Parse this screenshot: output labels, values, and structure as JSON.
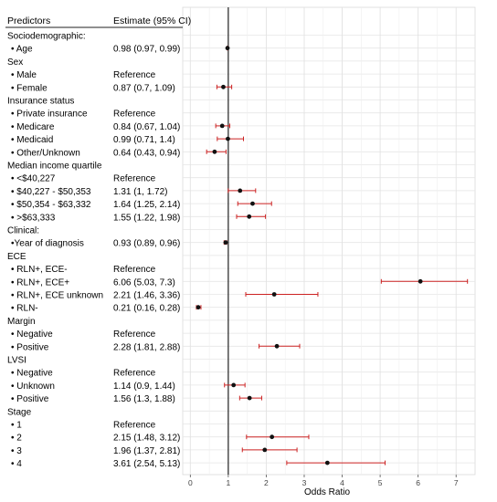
{
  "chart_data": {
    "type": "forest",
    "header": {
      "predictors": "Predictors",
      "estimate": "Estimate (95% CI)"
    },
    "xlabel": "Odds Ratio",
    "xlim": [
      -0.2,
      7.5
    ],
    "xticks": [
      0,
      1,
      2,
      3,
      4,
      5,
      6,
      7
    ],
    "reference_line": 1,
    "grid": true,
    "rows": [
      {
        "label": "Sociodemographic:",
        "kind": "section"
      },
      {
        "label": "• Age",
        "estimate_text": "0.98 (0.97, 0.99)",
        "or": 0.98,
        "lo": 0.97,
        "hi": 0.99
      },
      {
        "label": "Sex",
        "kind": "section"
      },
      {
        "label": "• Male",
        "estimate_text": "Reference"
      },
      {
        "label": "• Female",
        "estimate_text": "0.87 (0.7, 1.09)",
        "or": 0.87,
        "lo": 0.7,
        "hi": 1.09
      },
      {
        "label": "Insurance status",
        "kind": "section"
      },
      {
        "label": "• Private insurance",
        "estimate_text": "Reference"
      },
      {
        "label": "• Medicare",
        "estimate_text": "0.84 (0.67, 1.04)",
        "or": 0.84,
        "lo": 0.67,
        "hi": 1.04
      },
      {
        "label": "• Medicaid",
        "estimate_text": "0.99 (0.71, 1.4)",
        "or": 0.99,
        "lo": 0.71,
        "hi": 1.4
      },
      {
        "label": "• Other/Unknown",
        "estimate_text": "0.64 (0.43, 0.94)",
        "or": 0.64,
        "lo": 0.43,
        "hi": 0.94
      },
      {
        "label": "Median income quartile",
        "kind": "section"
      },
      {
        "label": "• <$40,227",
        "estimate_text": "Reference"
      },
      {
        "label": "• $40,227 - $50,353",
        "estimate_text": "1.31 (1, 1.72)",
        "or": 1.31,
        "lo": 1.0,
        "hi": 1.72
      },
      {
        "label": "• $50,354 - $63,332",
        "estimate_text": "1.64 (1.25, 2.14)",
        "or": 1.64,
        "lo": 1.25,
        "hi": 2.14
      },
      {
        "label": "• >$63,333",
        "estimate_text": "1.55 (1.22, 1.98)",
        "or": 1.55,
        "lo": 1.22,
        "hi": 1.98
      },
      {
        "label": "Clinical:",
        "kind": "section"
      },
      {
        "label": "•Year of diagnosis",
        "estimate_text": "0.93 (0.89, 0.96)",
        "or": 0.93,
        "lo": 0.89,
        "hi": 0.96
      },
      {
        "label": "ECE",
        "kind": "section"
      },
      {
        "label": "• RLN+, ECE-",
        "estimate_text": "Reference"
      },
      {
        "label": "• RLN+, ECE+",
        "estimate_text": "6.06 (5.03, 7.3)",
        "or": 6.06,
        "lo": 5.03,
        "hi": 7.3
      },
      {
        "label": "• RLN+, ECE unknown",
        "estimate_text": "2.21 (1.46, 3.36)",
        "or": 2.21,
        "lo": 1.46,
        "hi": 3.36
      },
      {
        "label": "• RLN-",
        "estimate_text": "0.21 (0.16, 0.28)",
        "or": 0.21,
        "lo": 0.16,
        "hi": 0.28
      },
      {
        "label": "Margin",
        "kind": "section"
      },
      {
        "label": "• Negative",
        "estimate_text": "Reference"
      },
      {
        "label": "• Positive",
        "estimate_text": "2.28 (1.81, 2.88)",
        "or": 2.28,
        "lo": 1.81,
        "hi": 2.88
      },
      {
        "label": "LVSI",
        "kind": "section"
      },
      {
        "label": "• Negative",
        "estimate_text": "Reference"
      },
      {
        "label": "• Unknown",
        "estimate_text": "1.14 (0.9, 1.44)",
        "or": 1.14,
        "lo": 0.9,
        "hi": 1.44
      },
      {
        "label": "• Positive",
        "estimate_text": "1.56 (1.3, 1.88)",
        "or": 1.56,
        "lo": 1.3,
        "hi": 1.88
      },
      {
        "label": "Stage",
        "kind": "section"
      },
      {
        "label": "• 1",
        "estimate_text": "Reference"
      },
      {
        "label": "• 2",
        "estimate_text": "2.15 (1.48, 3.12)",
        "or": 2.15,
        "lo": 1.48,
        "hi": 3.12
      },
      {
        "label": "• 3",
        "estimate_text": "1.96 (1.37, 2.81)",
        "or": 1.96,
        "lo": 1.37,
        "hi": 2.81
      },
      {
        "label": "• 4",
        "estimate_text": "3.61 (2.54, 5.13)",
        "or": 3.61,
        "lo": 2.54,
        "hi": 5.13
      }
    ],
    "colors": {
      "ci": "#cc2222",
      "point": "#111111",
      "grid": "#e6e6e6",
      "reference_line": "#222222"
    }
  }
}
